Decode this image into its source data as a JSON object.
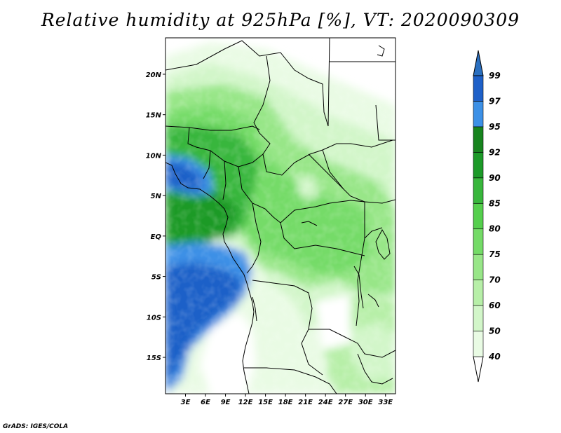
{
  "title": "Relative humidity at 925hPa [%], VT: 2020090309",
  "footer": "GrADS: IGES/COLA",
  "map": {
    "lon_range": [
      0,
      34.5
    ],
    "lat_range": [
      -19.5,
      24.5
    ],
    "x_ticks": [
      {
        "value": 3,
        "label": "3E"
      },
      {
        "value": 6,
        "label": "6E"
      },
      {
        "value": 9,
        "label": "9E"
      },
      {
        "value": 12,
        "label": "12E"
      },
      {
        "value": 15,
        "label": "15E"
      },
      {
        "value": 18,
        "label": "18E"
      },
      {
        "value": 21,
        "label": "21E"
      },
      {
        "value": 24,
        "label": "24E"
      },
      {
        "value": 27,
        "label": "27E"
      },
      {
        "value": 30,
        "label": "30E"
      },
      {
        "value": 33,
        "label": "33E"
      }
    ],
    "y_ticks": [
      {
        "value": 20,
        "label": "20N"
      },
      {
        "value": 15,
        "label": "15N"
      },
      {
        "value": 10,
        "label": "10N"
      },
      {
        "value": 5,
        "label": "5N"
      },
      {
        "value": 0,
        "label": "EQ"
      },
      {
        "value": -5,
        "label": "5S"
      },
      {
        "value": -10,
        "label": "10S"
      },
      {
        "value": -15,
        "label": "15S"
      }
    ]
  },
  "colorbar": {
    "levels": [
      "40",
      "50",
      "60",
      "70",
      "75",
      "80",
      "85",
      "90",
      "92",
      "95",
      "97",
      "99"
    ],
    "colors": [
      "#ffffff",
      "#e9fbe4",
      "#d2f6c9",
      "#b7efa8",
      "#98e688",
      "#74db67",
      "#55cf4d",
      "#38b63c",
      "#1c9a28",
      "#17841e",
      "#3c90e6",
      "#1e60c8",
      "#2a6fc0"
    ]
  }
}
